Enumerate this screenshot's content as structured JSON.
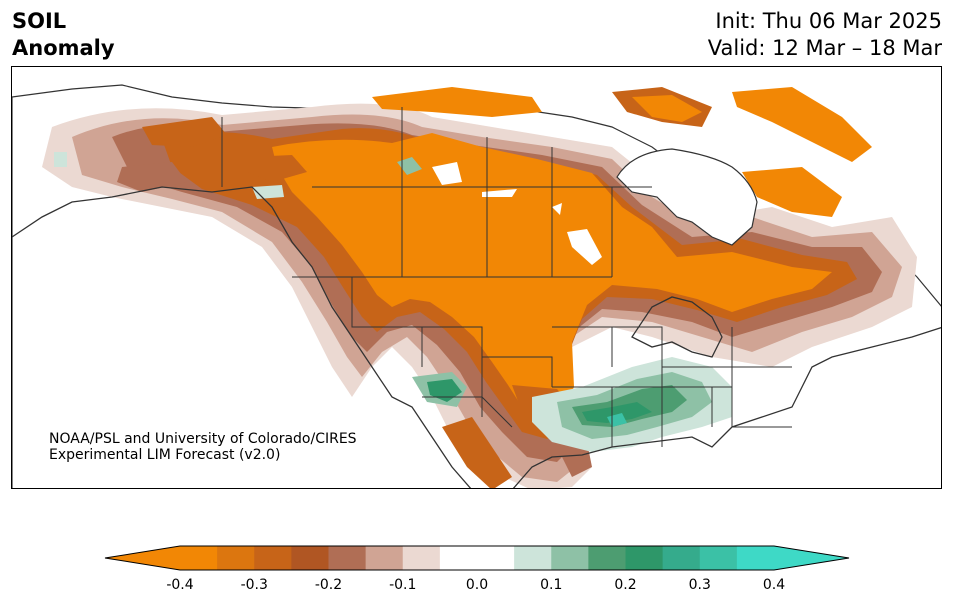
{
  "header": {
    "title_line1": "SOIL",
    "title_line2": "Anomaly",
    "init_text": "Init: Thu 06 Mar 2025",
    "valid_text": "Valid: 12 Mar – 18 Mar"
  },
  "credit": {
    "line1": "NOAA/PSL and University of Colorado/CIRES",
    "line2": "Experimental LIM Forecast (v2.0)"
  },
  "colorbar": {
    "levels": [
      -0.4,
      -0.35,
      -0.3,
      -0.25,
      -0.2,
      -0.15,
      -0.1,
      -0.05,
      0.05,
      0.1,
      0.15,
      0.2,
      0.25,
      0.3,
      0.35,
      0.4
    ],
    "colors": [
      "#f28705",
      "#dc760f",
      "#c76418",
      "#b05623",
      "#b06e55",
      "#d0a494",
      "#ebd9d2",
      "#ffffff",
      "#ffffff",
      "#cde4da",
      "#8ec1a6",
      "#4d9d71",
      "#2e9769",
      "#35ab8c",
      "#3bc1a6",
      "#3ed9c6"
    ],
    "under_color": "#f28705",
    "over_color": "#3ed9c6",
    "ticks": [
      "-0.4",
      "-0.3",
      "-0.2",
      "-0.1",
      "0.0",
      "0.1",
      "0.2",
      "0.3",
      "0.4"
    ]
  },
  "map": {
    "projection": "Lambert conformal, North America",
    "palette": {
      "dry_strong": "#f28705",
      "dry_mid": "#c76418",
      "dry_weak": "#b06e55",
      "dry_light": "#d0a494",
      "dry_faint": "#ebd9d2",
      "wet_faint": "#cde4da",
      "wet_mid": "#4d9d71",
      "wet_strong": "#2e9769",
      "wet_max": "#3bc1a6",
      "border": "#333333"
    }
  }
}
